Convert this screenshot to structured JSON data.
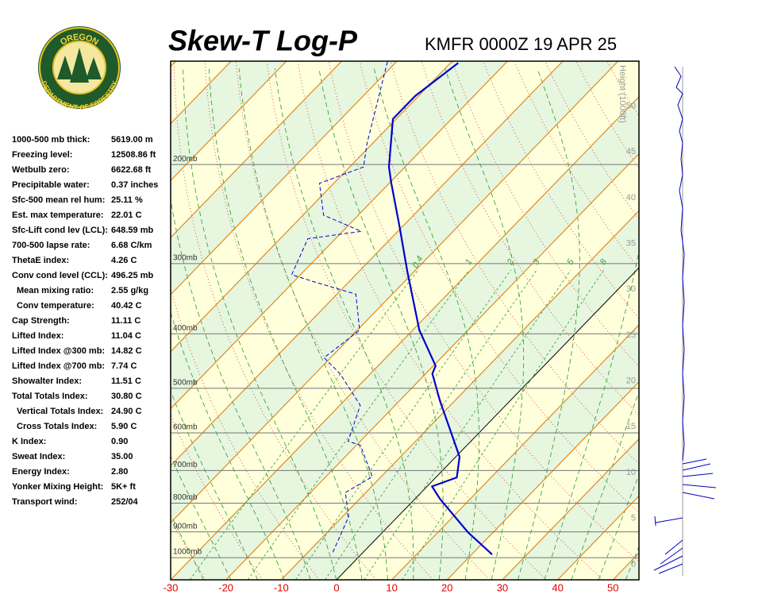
{
  "logo": {
    "top": "OREGON",
    "bottom": "DEPARTMENT OF FORESTRY"
  },
  "indices": [
    {
      "label": "1000-500 mb thick:",
      "value": "5619.00 m"
    },
    {
      "label": "Freezing level:",
      "value": "12508.86 ft"
    },
    {
      "label": "Wetbulb zero:",
      "value": "6622.68 ft"
    },
    {
      "label": "Precipitable water:",
      "value": "0.37 inches"
    },
    {
      "label": "Sfc-500 mean rel hum:",
      "value": "25.11 %"
    },
    {
      "label": "Est. max temperature:",
      "value": "22.01 C"
    },
    {
      "label": "Sfc-Lift cond lev (LCL):",
      "value": "648.59 mb"
    },
    {
      "label": "700-500 lapse rate:",
      "value": "6.68 C/km"
    },
    {
      "label": "ThetaE index:",
      "value": "4.26 C"
    },
    {
      "label": "Conv cond level (CCL):",
      "value": "496.25 mb"
    },
    {
      "label": "Mean mixing ratio:",
      "value": "2.55 g/kg",
      "indent": true
    },
    {
      "label": "Conv temperature:",
      "value": "40.42 C",
      "indent": true
    },
    {
      "label": "Cap Strength:",
      "value": "11.11 C"
    },
    {
      "label": "Lifted Index:",
      "value": "11.04 C"
    },
    {
      "label": "Lifted Index @300 mb:",
      "value": "14.82 C"
    },
    {
      "label": "Lifted Index @700 mb:",
      "value": "7.74 C"
    },
    {
      "label": "Showalter Index:",
      "value": "11.51 C"
    },
    {
      "label": "Total Totals Index:",
      "value": "30.80 C"
    },
    {
      "label": "Vertical Totals Index:",
      "value": "24.90 C",
      "indent": true
    },
    {
      "label": "Cross Totals Index:",
      "value": "5.90 C",
      "indent": true
    },
    {
      "label": "K Index:",
      "value": "0.90"
    },
    {
      "label": "Sweat Index:",
      "value": "35.00"
    },
    {
      "label": "Energy Index:",
      "value": "2.80"
    },
    {
      "label": "Yonker Mixing Height:",
      "value": "5K+ ft"
    },
    {
      "label": "Transport wind:",
      "value": "252/04"
    }
  ],
  "chart_data": {
    "type": "skew-t",
    "title": "Skew-T Log-P",
    "subtitle": "KMFR 0000Z 19 APR 25",
    "xlim": [
      -30,
      54.7
    ],
    "xticks": [
      -30,
      -20,
      -10,
      0,
      10,
      20,
      30,
      40,
      50
    ],
    "ylim": [
      1095,
      131
    ],
    "y_scale": "log",
    "yticks": [
      {
        "value": 200,
        "label": "200mb"
      },
      {
        "value": 300,
        "label": "300mb"
      },
      {
        "value": 400,
        "label": "400mb"
      },
      {
        "value": 500,
        "label": "500mb"
      },
      {
        "value": 600,
        "label": "600mb"
      },
      {
        "value": 700,
        "label": "700mb"
      },
      {
        "value": 800,
        "label": "800mb"
      },
      {
        "value": 900,
        "label": "900mb"
      },
      {
        "value": 1000,
        "label": "1000mb"
      }
    ],
    "y2label": "Height (1000ft)",
    "y2lim": [
      -1.7,
      54.9
    ],
    "y2ticks": [
      0,
      5,
      10,
      15,
      20,
      25,
      30,
      35,
      40,
      45,
      50
    ],
    "mixing_ratios": [
      0.4,
      1,
      2,
      3,
      5,
      8
    ],
    "series": [
      {
        "color": "#0000cc",
        "style": "solid",
        "pressure": [
          987,
          901,
          786,
          747,
          720,
          662,
          591,
          527,
          471,
          456,
          394,
          309,
          258,
          216,
          202,
          166,
          151,
          132
        ],
        "values": [
          23.7,
          15.4,
          4.5,
          0.9,
          3.8,
          0.7,
          -5.9,
          -12.6,
          -18.8,
          -19.6,
          -28.8,
          -41.4,
          -50.5,
          -59.6,
          -62.9,
          -70.6,
          -70.6,
          -68.6
        ]
      },
      {
        "color": "#0000cc",
        "style": "dashed",
        "pressure": [
          978,
          845,
          766,
          718,
          631,
          621,
          536,
          471,
          441,
          394,
          340,
          324,
          314,
          271,
          263,
          246,
          216,
          202,
          184,
          131
        ],
        "values": [
          -5.5,
          -8.9,
          -13.7,
          -11.6,
          -19.3,
          -22.2,
          -26.3,
          -35.5,
          -41.2,
          -39.6,
          -46.6,
          -55.9,
          -61.6,
          -65,
          -56.6,
          -66.3,
          -72.6,
          -67.5,
          -70.9,
          -81.7
        ]
      }
    ]
  }
}
